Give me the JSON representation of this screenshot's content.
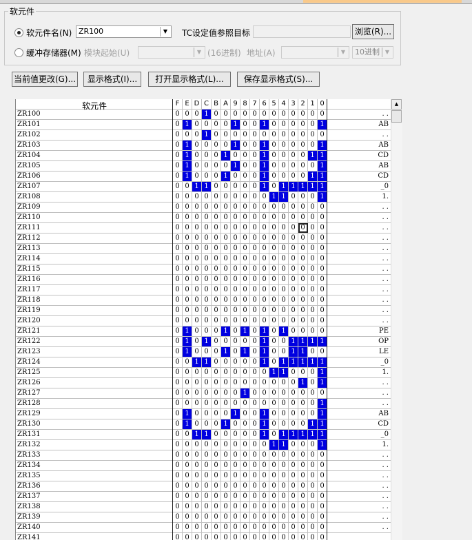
{
  "group": {
    "title": "软元件",
    "device_name_label": "软元件名(N)",
    "device_name_value": "ZR100",
    "tc_label": "TC设定值参照目标",
    "browse_button": "浏览(R)...",
    "buffer_label": "缓冲存储器(M)",
    "module_start_label": "模块起始(U)",
    "hex_label": "(16进制)",
    "address_label": "地址(A)",
    "radix_value": "10进制",
    "selected_radio": "device_name"
  },
  "buttons": {
    "change_value": "当前值更改(G)...",
    "display_format": "显示格式(I)...",
    "open_format": "打开显示格式(L)...",
    "save_format": "保存显示格式(S)..."
  },
  "table": {
    "header_device": "软元件",
    "bit_headers": [
      "F",
      "E",
      "D",
      "C",
      "B",
      "A",
      "9",
      "8",
      "7",
      "6",
      "5",
      "4",
      "3",
      "2",
      "1",
      "0"
    ],
    "on_color": "#0000e0",
    "focus": {
      "device": "ZR111",
      "bit": "2"
    },
    "rows": [
      {
        "device": "ZR100",
        "bits": "0001000000000000",
        "ascii": ". ."
      },
      {
        "device": "ZR101",
        "bits": "0100001001000001",
        "ascii": "AB"
      },
      {
        "device": "ZR102",
        "bits": "0001000000000000",
        "ascii": ". ."
      },
      {
        "device": "ZR103",
        "bits": "0100001001000001",
        "ascii": "AB"
      },
      {
        "device": "ZR104",
        "bits": "0100010001000011",
        "ascii": "CD"
      },
      {
        "device": "ZR105",
        "bits": "0100001001000001",
        "ascii": "AB"
      },
      {
        "device": "ZR106",
        "bits": "0100010001000011",
        "ascii": "CD"
      },
      {
        "device": "ZR107",
        "bits": "0011000001011111",
        "ascii": "_0"
      },
      {
        "device": "ZR108",
        "bits": "0000000000110001",
        "ascii": "1."
      },
      {
        "device": "ZR109",
        "bits": "0000000000000000",
        "ascii": ". ."
      },
      {
        "device": "ZR110",
        "bits": "0000000000000000",
        "ascii": ". ."
      },
      {
        "device": "ZR111",
        "bits": "0000000000000000",
        "ascii": ". ."
      },
      {
        "device": "ZR112",
        "bits": "0000000000000000",
        "ascii": ". ."
      },
      {
        "device": "ZR113",
        "bits": "0000000000000000",
        "ascii": ". ."
      },
      {
        "device": "ZR114",
        "bits": "0000000000000000",
        "ascii": ". ."
      },
      {
        "device": "ZR115",
        "bits": "0000000000000000",
        "ascii": ". ."
      },
      {
        "device": "ZR116",
        "bits": "0000000000000000",
        "ascii": ". ."
      },
      {
        "device": "ZR117",
        "bits": "0000000000000000",
        "ascii": ". ."
      },
      {
        "device": "ZR118",
        "bits": "0000000000000000",
        "ascii": ". ."
      },
      {
        "device": "ZR119",
        "bits": "0000000000000000",
        "ascii": ". ."
      },
      {
        "device": "ZR120",
        "bits": "0000000000000000",
        "ascii": ". ."
      },
      {
        "device": "ZR121",
        "bits": "0100010101010000",
        "ascii": "PE"
      },
      {
        "device": "ZR122",
        "bits": "0101000001001111",
        "ascii": "OP"
      },
      {
        "device": "ZR123",
        "bits": "0100010101001100",
        "ascii": "LE"
      },
      {
        "device": "ZR124",
        "bits": "0011000001011111",
        "ascii": "_0"
      },
      {
        "device": "ZR125",
        "bits": "0000000000110001",
        "ascii": "1."
      },
      {
        "device": "ZR126",
        "bits": "0000000000000101",
        "ascii": ". ."
      },
      {
        "device": "ZR127",
        "bits": "0000000100000000",
        "ascii": ". ."
      },
      {
        "device": "ZR128",
        "bits": "0000000000000001",
        "ascii": ". ."
      },
      {
        "device": "ZR129",
        "bits": "0100001001000001",
        "ascii": "AB"
      },
      {
        "device": "ZR130",
        "bits": "0100010001000011",
        "ascii": "CD"
      },
      {
        "device": "ZR131",
        "bits": "0011000001011111",
        "ascii": "_0"
      },
      {
        "device": "ZR132",
        "bits": "0000000000110001",
        "ascii": "1."
      },
      {
        "device": "ZR133",
        "bits": "0000000000000000",
        "ascii": ". ."
      },
      {
        "device": "ZR134",
        "bits": "0000000000000000",
        "ascii": ". ."
      },
      {
        "device": "ZR135",
        "bits": "0000000000000000",
        "ascii": ". ."
      },
      {
        "device": "ZR136",
        "bits": "0000000000000000",
        "ascii": ". ."
      },
      {
        "device": "ZR137",
        "bits": "0000000000000000",
        "ascii": ". ."
      },
      {
        "device": "ZR138",
        "bits": "0000000000000000",
        "ascii": ". ."
      },
      {
        "device": "ZR139",
        "bits": "0000000000000000",
        "ascii": ". ."
      },
      {
        "device": "ZR140",
        "bits": "0000000000000000",
        "ascii": ". ."
      },
      {
        "device": "ZR141",
        "bits": "0000000000000000",
        "ascii": ""
      }
    ]
  }
}
